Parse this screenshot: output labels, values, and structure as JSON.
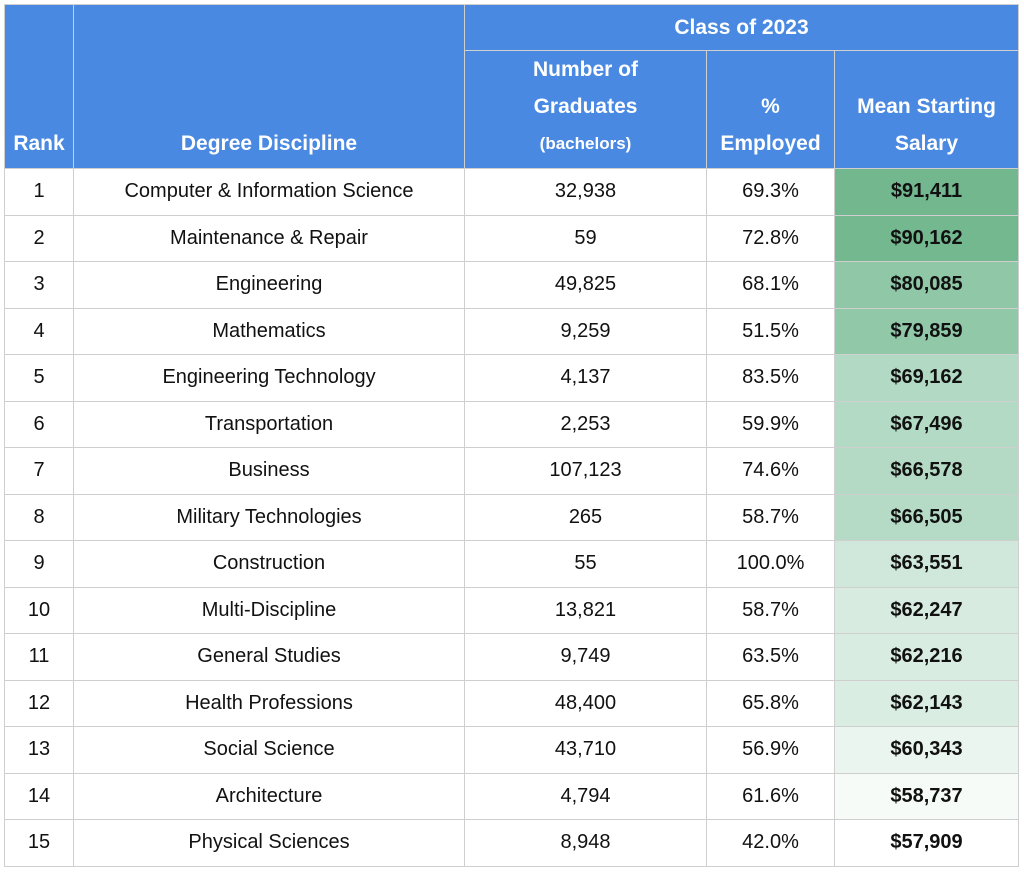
{
  "header": {
    "group_label": "Class of 2023",
    "rank": "Rank",
    "discipline": "Degree Discipline",
    "graduates_line1": "Number of",
    "graduates_line2": "Graduates",
    "graduates_line3": "(bachelors)",
    "employed_line1": "%",
    "employed_line2": "Employed",
    "salary_line1": "Mean Starting",
    "salary_line2": "Salary"
  },
  "rows": [
    {
      "rank": "1",
      "discipline": "Computer & Information Science",
      "graduates": "32,938",
      "employed": "69.3%",
      "salary": "$91,411",
      "color": "#73b78f"
    },
    {
      "rank": "2",
      "discipline": "Maintenance & Repair",
      "graduates": "59",
      "employed": "72.8%",
      "salary": "$90,162",
      "color": "#74b890"
    },
    {
      "rank": "3",
      "discipline": "Engineering",
      "graduates": "49,825",
      "employed": "68.1%",
      "salary": "$80,085",
      "color": "#8fc7a7"
    },
    {
      "rank": "4",
      "discipline": "Mathematics",
      "graduates": "9,259",
      "employed": "51.5%",
      "salary": "$79,859",
      "color": "#90c8a8"
    },
    {
      "rank": "5",
      "discipline": "Engineering Technology",
      "graduates": "4,137",
      "employed": "83.5%",
      "salary": "$69,162",
      "color": "#b1d9c3"
    },
    {
      "rank": "6",
      "discipline": "Transportation",
      "graduates": "2,253",
      "employed": "59.9%",
      "salary": "$67,496",
      "color": "#b3dac4"
    },
    {
      "rank": "7",
      "discipline": "Business",
      "graduates": "107,123",
      "employed": "74.6%",
      "salary": "$66,578",
      "color": "#b4dac5"
    },
    {
      "rank": "8",
      "discipline": "Military Technologies",
      "graduates": "265",
      "employed": "58.7%",
      "salary": "$66,505",
      "color": "#b5dbc6"
    },
    {
      "rank": "9",
      "discipline": "Construction",
      "graduates": "55",
      "employed": "100.0%",
      "salary": "$63,551",
      "color": "#d0e8db"
    },
    {
      "rank": "10",
      "discipline": "Multi-Discipline",
      "graduates": "13,821",
      "employed": "58.7%",
      "salary": "$62,247",
      "color": "#d7ebe0"
    },
    {
      "rank": "11",
      "discipline": "General Studies",
      "graduates": "9,749",
      "employed": "63.5%",
      "salary": "$62,216",
      "color": "#d8ece1"
    },
    {
      "rank": "12",
      "discipline": "Health Professions",
      "graduates": "48,400",
      "employed": "65.8%",
      "salary": "$62,143",
      "color": "#daede2"
    },
    {
      "rank": "13",
      "discipline": "Social Science",
      "graduates": "43,710",
      "employed": "56.9%",
      "salary": "$60,343",
      "color": "#ebf5ef"
    },
    {
      "rank": "14",
      "discipline": "Architecture",
      "graduates": "4,794",
      "employed": "61.6%",
      "salary": "$58,737",
      "color": "#f6fbf8"
    },
    {
      "rank": "15",
      "discipline": "Physical Sciences",
      "graduates": "8,948",
      "employed": "42.0%",
      "salary": "$57,909",
      "color": "#ffffff"
    }
  ]
}
